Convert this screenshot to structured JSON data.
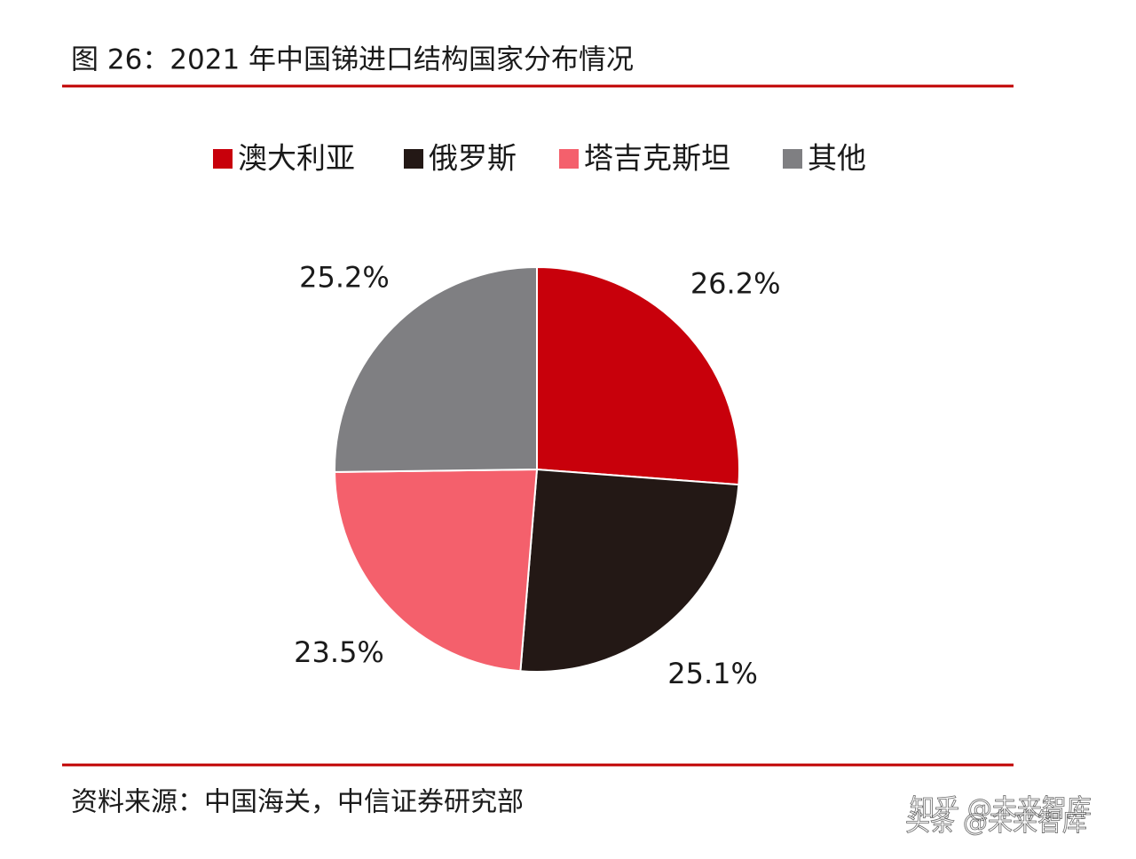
{
  "chart_data": {
    "type": "pie",
    "title": "图 26：2021 年中国锑进口结构国家分布情况",
    "categories": [
      "澳大利亚",
      "俄罗斯",
      "塔吉克斯坦",
      "其他"
    ],
    "values": [
      26.2,
      25.1,
      23.5,
      25.2
    ],
    "value_labels": [
      "26.2%",
      "25.1%",
      "23.5%",
      "25.2%"
    ],
    "colors": [
      "#c8000b",
      "#231815",
      "#f4606c",
      "#7f7f82"
    ],
    "source": "资料来源：中国海关，中信证券研究部",
    "watermarks": [
      "知乎 @未来智库",
      "头条 @未来智库"
    ]
  }
}
